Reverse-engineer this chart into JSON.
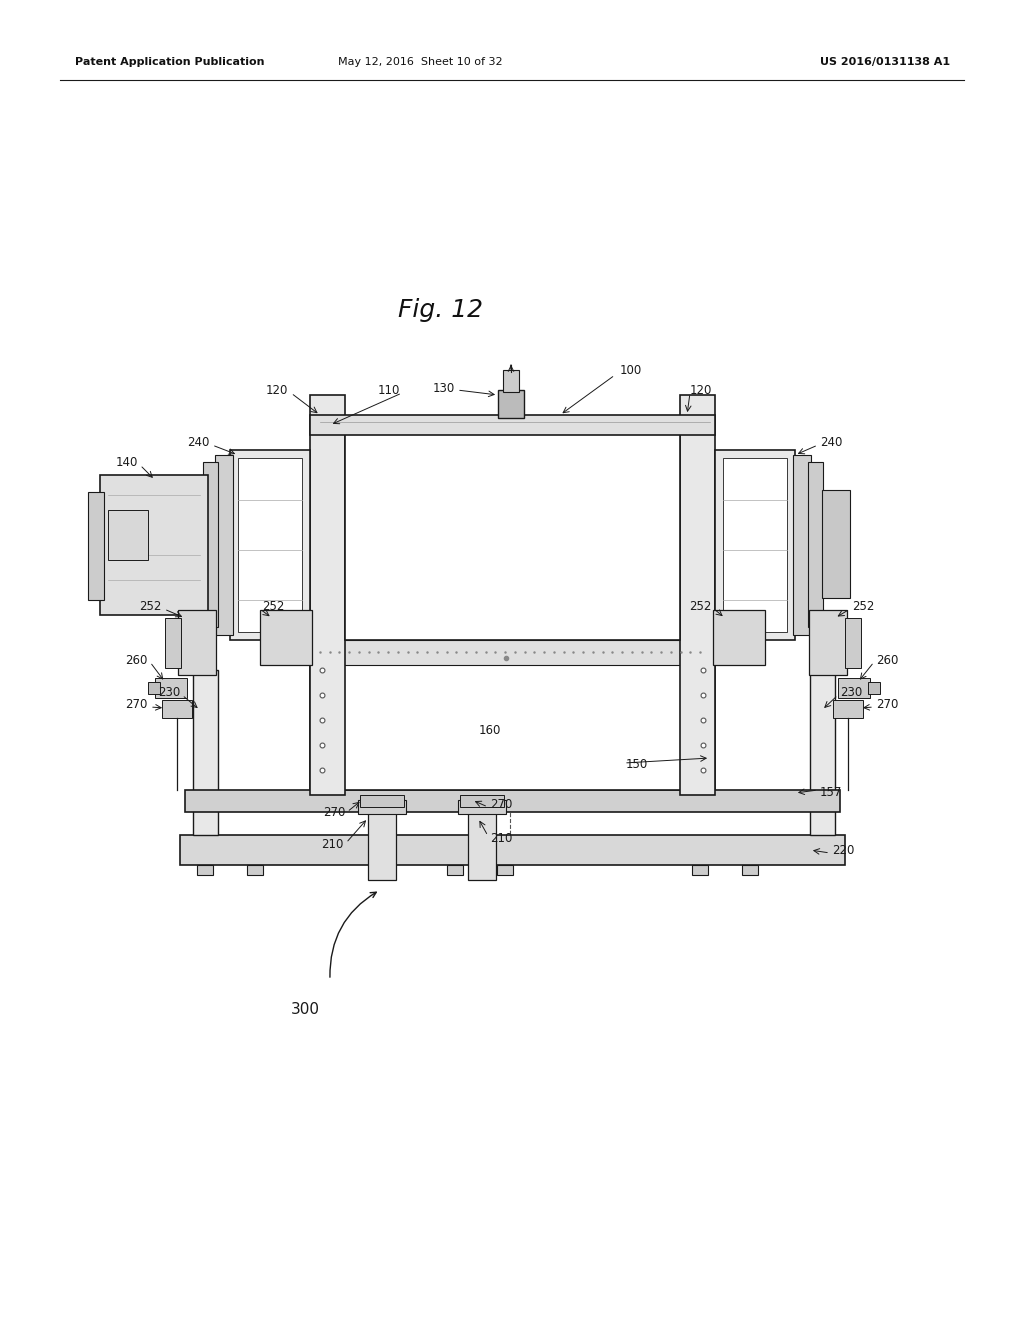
{
  "header_left": "Patent Application Publication",
  "header_mid": "May 12, 2016  Sheet 10 of 32",
  "header_right": "US 2016/0131138 A1",
  "bg_color": "#ffffff",
  "line_color": "#1a1a1a",
  "label_color": "#1a1a1a",
  "fig_title": "Fig. 12"
}
